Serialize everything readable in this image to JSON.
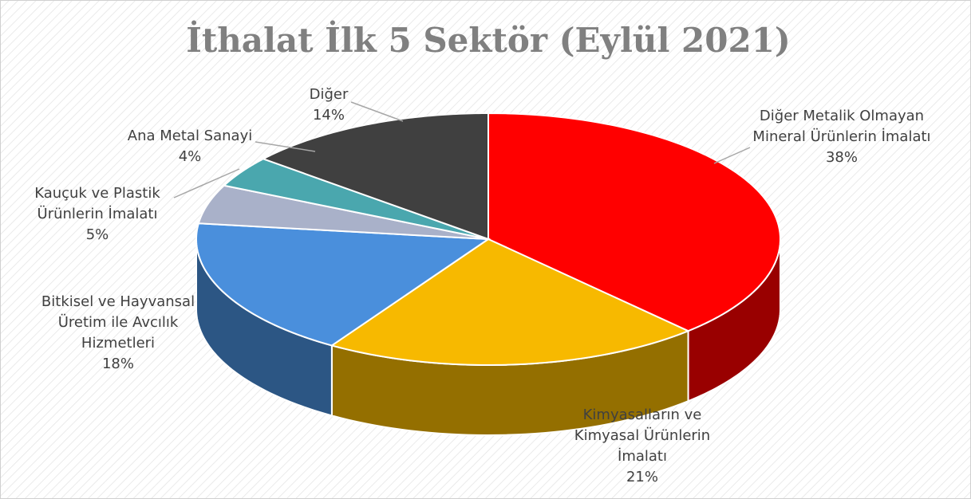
{
  "chart_data": {
    "type": "pie",
    "title": "İthalat İlk 5 Sektör (Eylül 2021)",
    "categories": [
      "Diğer Metalik Olmayan Mineral Ürünlerin İmalatı",
      "Kimyasalların ve Kimyasal Ürünlerin İmalatı",
      "Bitkisel ve Hayvansal Üretim ile Avcılık Hizmetleri",
      "Kauçuk ve Plastik Ürünlerin İmalatı",
      "Ana Metal Sanayi",
      "Diğer"
    ],
    "values": [
      38,
      21,
      18,
      5,
      4,
      14
    ],
    "value_labels": [
      "38%",
      "21%",
      "18%",
      "5%",
      "4%",
      "14%"
    ],
    "colors": [
      "#ff0000",
      "#f7b900",
      "#4a8fdc",
      "#a9b1c9",
      "#4aa7ae",
      "#404040"
    ]
  }
}
